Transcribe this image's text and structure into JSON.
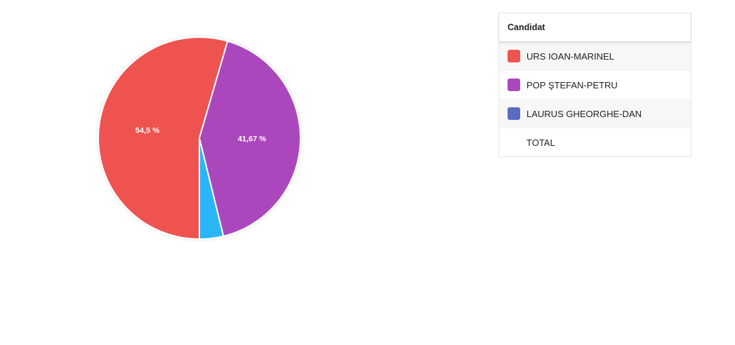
{
  "chart_data": {
    "type": "pie",
    "categories": [
      "URS IOAN-MARINEL",
      "POP ŞTEFAN-PETRU",
      "LAURUS GHEORGHE-DAN"
    ],
    "values": [
      54.5,
      41.67,
      3.83
    ],
    "value_labels": [
      "54,5 %",
      "41,67 %",
      null
    ],
    "colors": [
      "#ef5350",
      "#ab47bc",
      "#29b6f6"
    ],
    "legend_title": "Candidat",
    "legend_colors": [
      "#ef5350",
      "#ab47bc",
      "#5c6bc0"
    ],
    "total_label": "TOTAL"
  }
}
